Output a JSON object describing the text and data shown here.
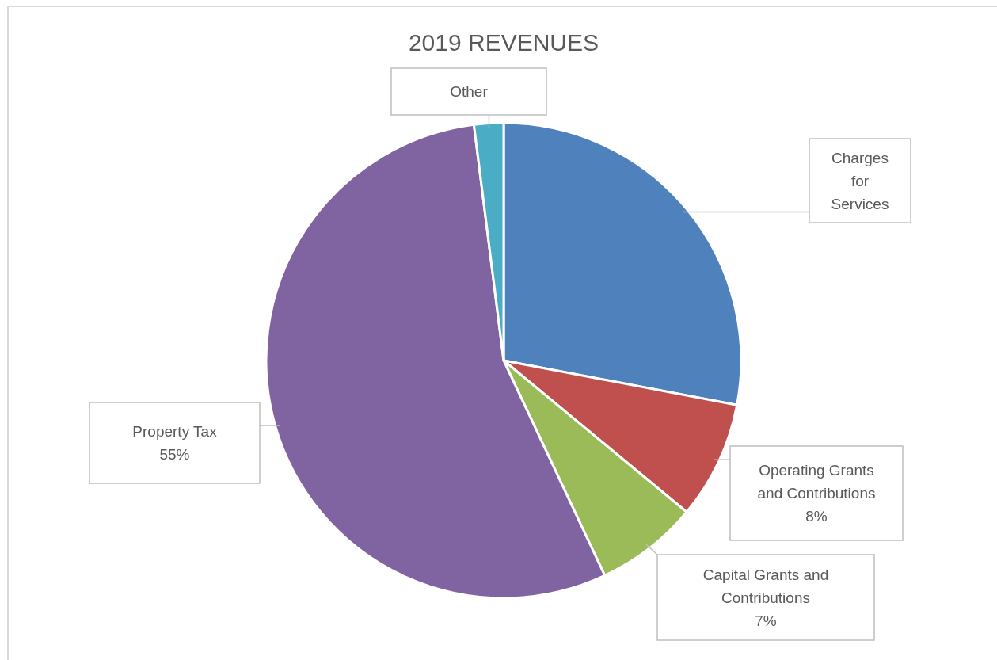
{
  "chart_data": {
    "type": "pie",
    "title": "2019 REVENUES",
    "categories": [
      "Charges for Services",
      "Operating Grants and Contributions",
      "Capital Grants and Contributions",
      "Property Tax",
      "Other"
    ],
    "values": [
      28,
      8,
      7,
      55,
      2
    ],
    "colors": [
      "#4f81bd",
      "#c0504d",
      "#9bbb59",
      "#8064a2",
      "#4bacc6"
    ],
    "value_labels": [
      null,
      "8%",
      "7%",
      "55%",
      null
    ]
  }
}
